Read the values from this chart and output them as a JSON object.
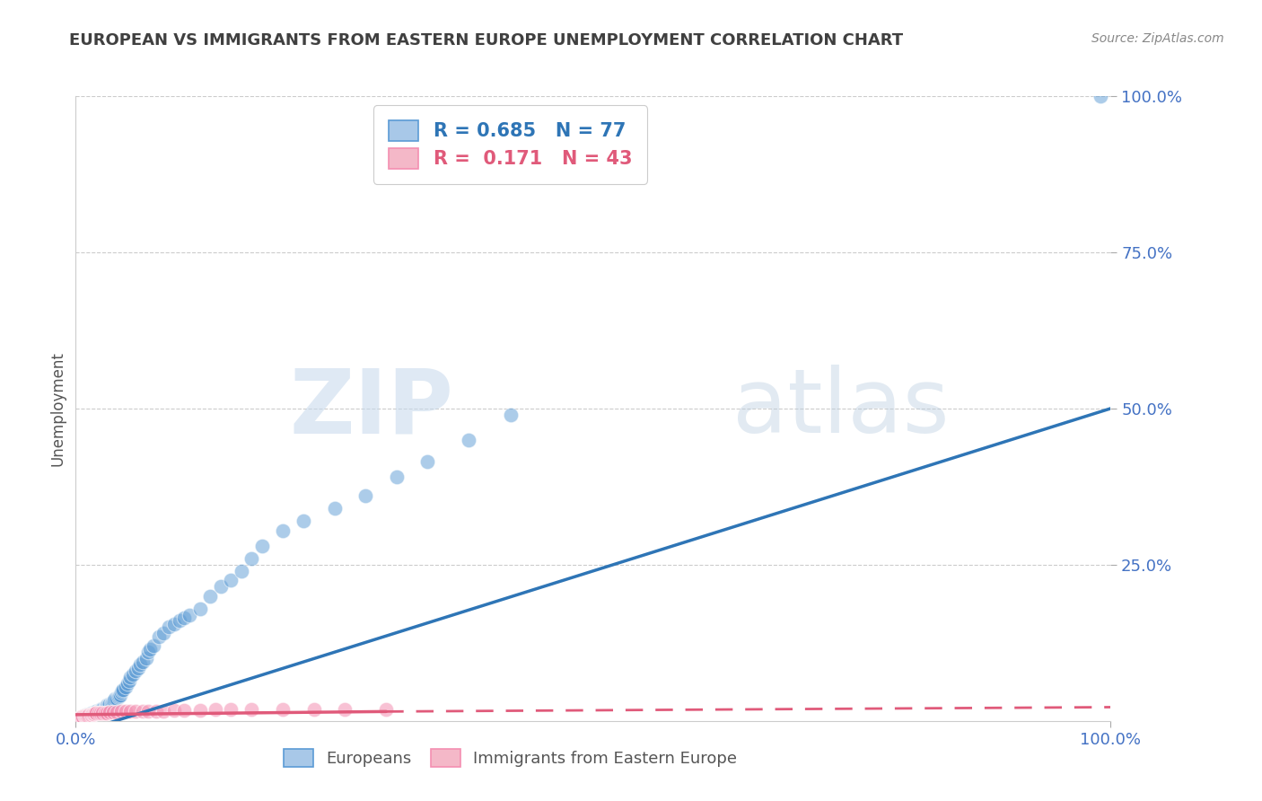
{
  "title": "EUROPEAN VS IMMIGRANTS FROM EASTERN EUROPE UNEMPLOYMENT CORRELATION CHART",
  "source": "Source: ZipAtlas.com",
  "ylabel": "Unemployment",
  "xlim": [
    0,
    1.0
  ],
  "ylim": [
    0,
    1.0
  ],
  "legend_entries": [
    {
      "label": "R = 0.685   N = 77",
      "color": "#5b9bd5"
    },
    {
      "label": "R =  0.171   N = 43",
      "color": "#e8637a"
    }
  ],
  "legend_labels": [
    "Europeans",
    "Immigrants from Eastern Europe"
  ],
  "blue_color": "#5b9bd5",
  "pink_color": "#f48fb1",
  "blue_line_color": "#2e75b6",
  "pink_line_color": "#e05a7a",
  "watermark_zip": "ZIP",
  "watermark_atlas": "atlas",
  "title_color": "#404040",
  "blue_scatter": {
    "x": [
      0.005,
      0.007,
      0.008,
      0.01,
      0.01,
      0.012,
      0.013,
      0.015,
      0.015,
      0.017,
      0.018,
      0.019,
      0.02,
      0.02,
      0.022,
      0.022,
      0.023,
      0.024,
      0.025,
      0.025,
      0.026,
      0.027,
      0.028,
      0.029,
      0.03,
      0.03,
      0.031,
      0.032,
      0.033,
      0.034,
      0.035,
      0.036,
      0.037,
      0.038,
      0.04,
      0.041,
      0.042,
      0.043,
      0.044,
      0.045,
      0.046,
      0.048,
      0.05,
      0.052,
      0.053,
      0.055,
      0.058,
      0.06,
      0.062,
      0.065,
      0.068,
      0.07,
      0.072,
      0.075,
      0.08,
      0.085,
      0.09,
      0.095,
      0.1,
      0.105,
      0.11,
      0.12,
      0.13,
      0.14,
      0.15,
      0.16,
      0.17,
      0.18,
      0.2,
      0.22,
      0.25,
      0.28,
      0.31,
      0.34,
      0.38,
      0.42,
      0.99
    ],
    "y": [
      0.005,
      0.007,
      0.008,
      0.008,
      0.01,
      0.01,
      0.01,
      0.01,
      0.012,
      0.012,
      0.013,
      0.013,
      0.014,
      0.015,
      0.015,
      0.016,
      0.017,
      0.018,
      0.018,
      0.019,
      0.02,
      0.02,
      0.021,
      0.022,
      0.022,
      0.025,
      0.025,
      0.026,
      0.027,
      0.028,
      0.03,
      0.032,
      0.033,
      0.035,
      0.036,
      0.038,
      0.04,
      0.042,
      0.045,
      0.048,
      0.05,
      0.055,
      0.06,
      0.065,
      0.07,
      0.075,
      0.08,
      0.085,
      0.09,
      0.095,
      0.1,
      0.11,
      0.115,
      0.12,
      0.135,
      0.14,
      0.15,
      0.155,
      0.16,
      0.165,
      0.17,
      0.18,
      0.2,
      0.215,
      0.225,
      0.24,
      0.26,
      0.28,
      0.305,
      0.32,
      0.34,
      0.36,
      0.39,
      0.415,
      0.45,
      0.49,
      1.0
    ]
  },
  "pink_scatter": {
    "x": [
      0.004,
      0.005,
      0.006,
      0.007,
      0.008,
      0.009,
      0.01,
      0.011,
      0.012,
      0.013,
      0.014,
      0.015,
      0.016,
      0.017,
      0.018,
      0.019,
      0.02,
      0.022,
      0.024,
      0.026,
      0.028,
      0.03,
      0.033,
      0.036,
      0.04,
      0.044,
      0.048,
      0.053,
      0.058,
      0.065,
      0.07,
      0.078,
      0.085,
      0.095,
      0.105,
      0.12,
      0.135,
      0.15,
      0.17,
      0.2,
      0.23,
      0.26,
      0.3
    ],
    "y": [
      0.006,
      0.006,
      0.007,
      0.007,
      0.008,
      0.008,
      0.009,
      0.009,
      0.009,
      0.01,
      0.01,
      0.01,
      0.011,
      0.011,
      0.011,
      0.012,
      0.012,
      0.013,
      0.013,
      0.013,
      0.013,
      0.013,
      0.014,
      0.014,
      0.014,
      0.015,
      0.015,
      0.015,
      0.016,
      0.016,
      0.016,
      0.016,
      0.016,
      0.017,
      0.017,
      0.017,
      0.018,
      0.018,
      0.018,
      0.018,
      0.018,
      0.019,
      0.019
    ]
  },
  "blue_line": {
    "x0": 0.0,
    "y0": -0.02,
    "x1": 1.0,
    "y1": 0.5
  },
  "pink_line_solid": {
    "x0": 0.0,
    "y0": 0.01,
    "x1": 0.3,
    "y1": 0.015
  },
  "pink_line_dash": {
    "x0": 0.3,
    "y0": 0.015,
    "x1": 1.0,
    "y1": 0.022
  }
}
